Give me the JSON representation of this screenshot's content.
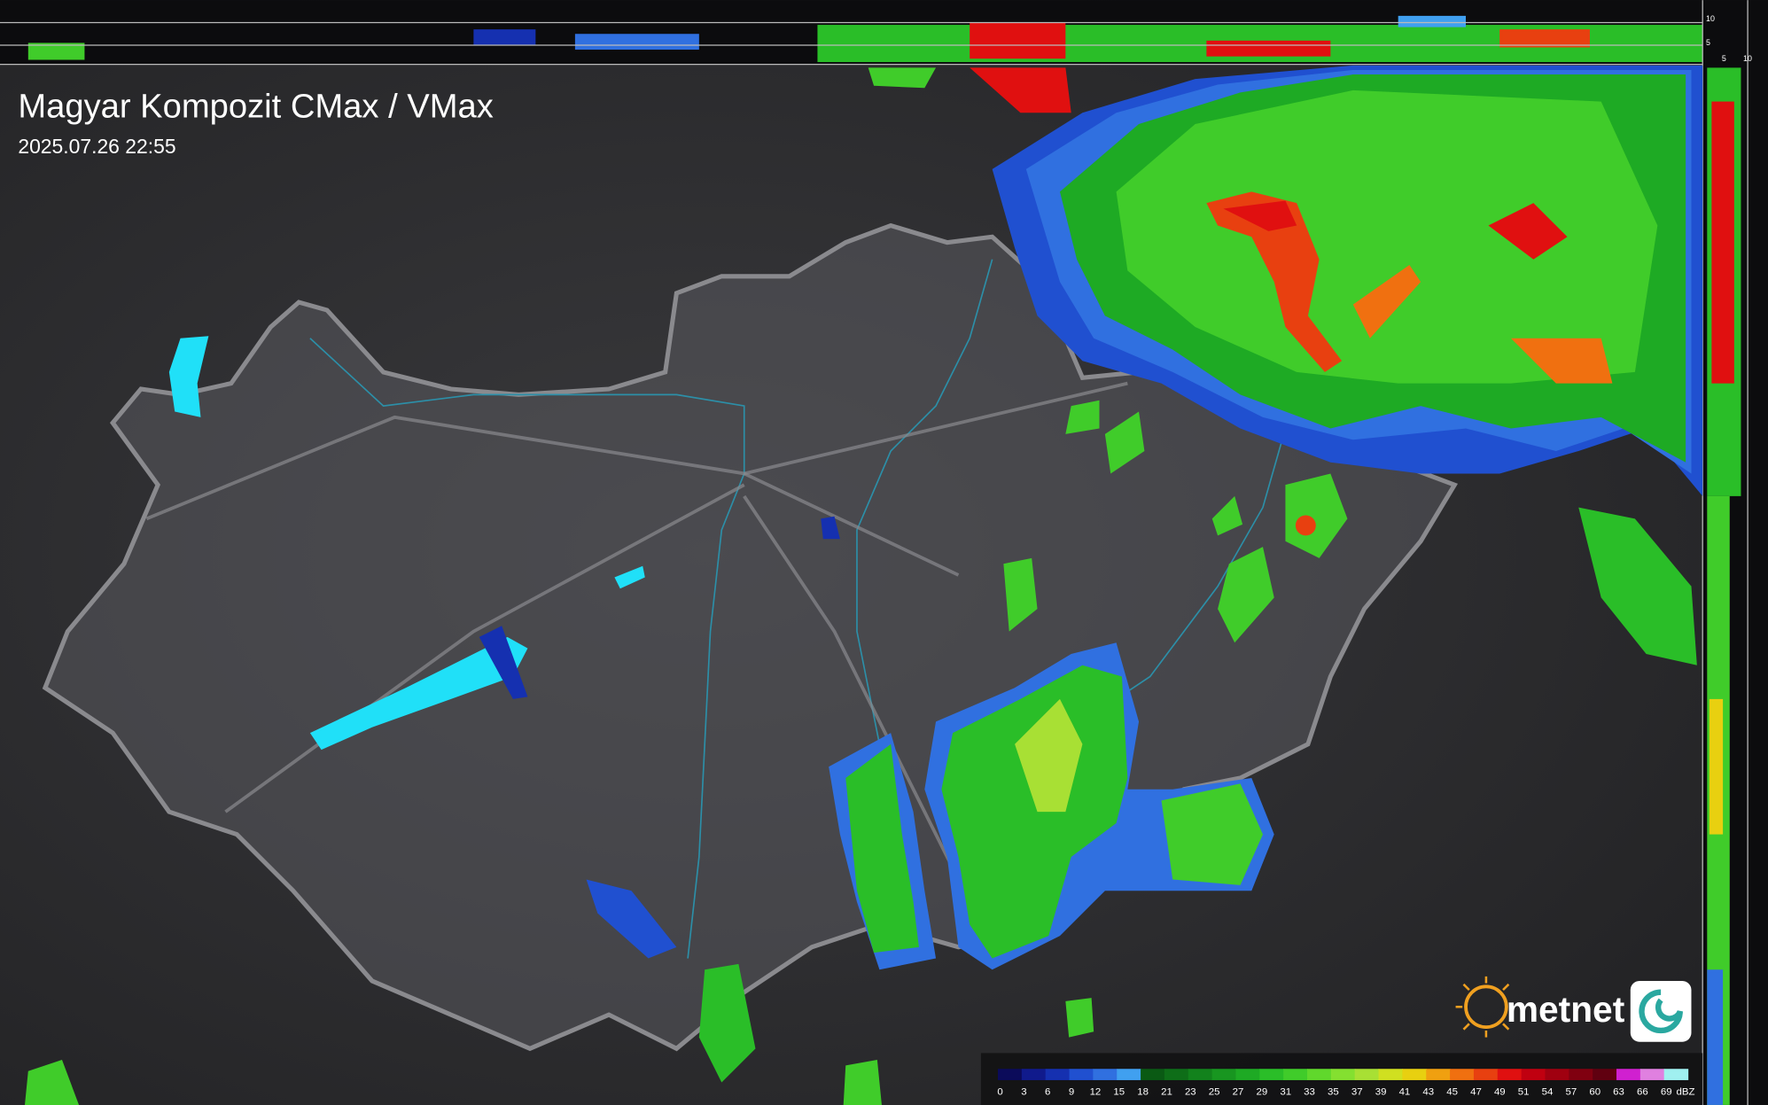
{
  "header": {
    "title": "Magyar Kompozit CMax / VMax",
    "timestamp": "2025.07.26 22:55"
  },
  "profile": {
    "top_labels": [
      10,
      5
    ],
    "side_labels": [
      5,
      10
    ]
  },
  "legend": {
    "ticks": [
      0,
      3,
      6,
      9,
      12,
      15,
      18,
      21,
      23,
      25,
      27,
      29,
      31,
      33,
      35,
      37,
      39,
      41,
      43,
      45,
      47,
      49,
      51,
      54,
      57,
      60,
      63,
      66,
      69
    ],
    "colors": [
      "#0b0b5a",
      "#101a8c",
      "#1530b0",
      "#2050d0",
      "#3070e0",
      "#40a0f0",
      "#0a5a14",
      "#0e6e18",
      "#12821c",
      "#189620",
      "#1eaa24",
      "#2abe28",
      "#40cc2a",
      "#60d82c",
      "#84e030",
      "#a8e034",
      "#d0e020",
      "#e8d010",
      "#f0a010",
      "#f07010",
      "#e84010",
      "#e01010",
      "#c00010",
      "#a00010",
      "#800010",
      "#600010",
      "#d020d0",
      "#e080e0",
      "#a0f0f0"
    ],
    "unit": "dBZ"
  },
  "logo": {
    "text": "metnet"
  }
}
